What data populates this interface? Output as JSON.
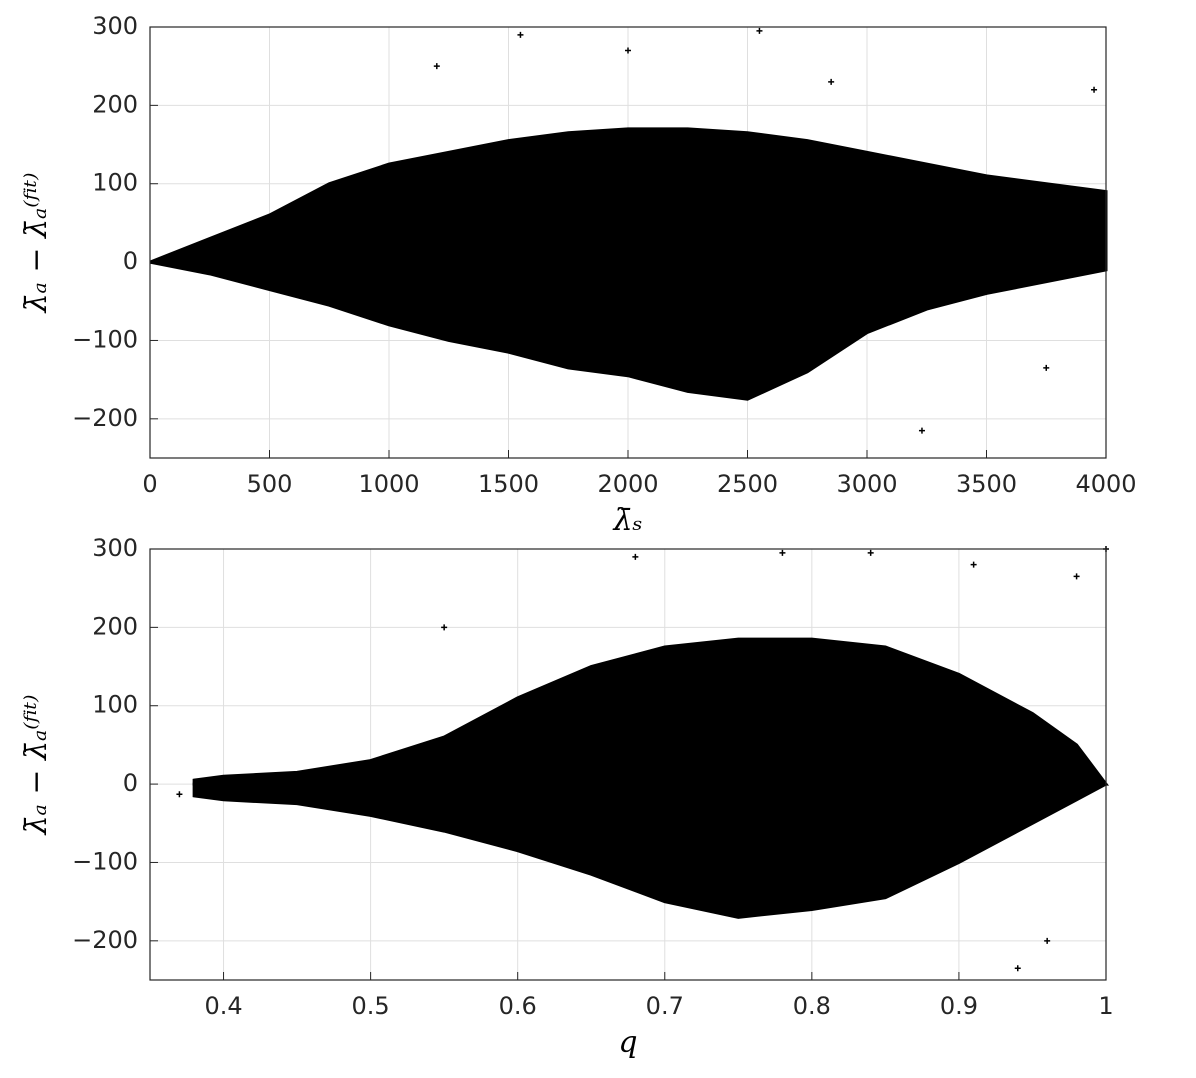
{
  "chart_data": [
    {
      "type": "scatter",
      "xlabel": "λ̄ₛ",
      "ylabel": "λ̄ₐ − λ̄ₐ⁽ᶠⁱᵗ⁾",
      "x": [
        0,
        250,
        500,
        750,
        1000,
        1250,
        1500,
        1750,
        2000,
        2250,
        2500,
        2750,
        3000,
        3250,
        3500,
        3750,
        4000
      ],
      "upper": [
        0,
        30,
        60,
        100,
        125,
        140,
        155,
        165,
        170,
        170,
        165,
        155,
        140,
        125,
        110,
        100,
        90
      ],
      "lower": [
        0,
        -15,
        -35,
        -55,
        -80,
        -100,
        -115,
        -135,
        -145,
        -165,
        -175,
        -140,
        -90,
        -60,
        -40,
        -25,
        -10
      ],
      "points": {
        "x": [
          1200,
          1550,
          2000,
          2550,
          2850,
          3230,
          3750,
          3950
        ],
        "y": [
          250,
          290,
          270,
          295,
          230,
          -215,
          -135,
          220
        ]
      },
      "color": "#000000",
      "xlim": [
        0,
        4000
      ],
      "xticks": [
        0,
        500,
        1000,
        1500,
        2000,
        2500,
        3000,
        3500,
        4000
      ],
      "ylim": [
        -250,
        300
      ],
      "yticks": [
        {
          "value": -200,
          "label": "−200"
        },
        {
          "value": -100,
          "label": "−100"
        },
        0,
        100,
        200,
        300
      ],
      "grid": true
    },
    {
      "type": "scatter",
      "xlabel": "q",
      "ylabel": "λ̄ₐ − λ̄ₐ⁽ᶠⁱᵗ⁾",
      "x": [
        0.38,
        0.4,
        0.45,
        0.5,
        0.55,
        0.6,
        0.65,
        0.7,
        0.75,
        0.8,
        0.85,
        0.9,
        0.95,
        0.98,
        1
      ],
      "upper": [
        5,
        10,
        15,
        30,
        60,
        110,
        150,
        175,
        185,
        185,
        175,
        140,
        90,
        50,
        0
      ],
      "lower": [
        -15,
        -20,
        -25,
        -40,
        -60,
        -85,
        -115,
        -150,
        -170,
        -160,
        -145,
        -100,
        -50,
        -20,
        0
      ],
      "points": {
        "x": [
          0.37,
          0.55,
          0.68,
          0.78,
          0.84,
          0.91,
          0.94,
          0.96,
          0.98,
          1
        ],
        "y": [
          -13,
          200,
          290,
          295,
          295,
          280,
          -235,
          -200,
          265,
          300
        ]
      },
      "color": "#000000",
      "xlim": [
        0.35,
        1
      ],
      "xticks": [
        0.4,
        0.5,
        0.6,
        0.7,
        0.8,
        0.9,
        1
      ],
      "ylim": [
        -250,
        300
      ],
      "yticks": [
        {
          "value": -200,
          "label": "−200"
        },
        {
          "value": -100,
          "label": "−100"
        },
        0,
        100,
        200,
        300
      ],
      "grid": true
    }
  ]
}
